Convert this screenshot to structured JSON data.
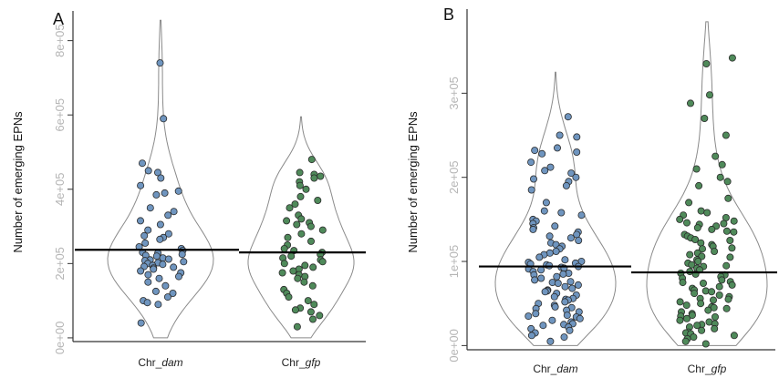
{
  "colors": {
    "blue": "#6f95bf",
    "green": "#4f8a5a",
    "violin": "#8a8a8a",
    "axis": "#333333",
    "tick_label": "#b5b5b5"
  },
  "chart_data": [
    {
      "panel": "A",
      "type": "scatter",
      "ylabel": "Number of emerging EPNs",
      "ylim": [
        -10000,
        880000
      ],
      "yticks": [
        0,
        200000,
        400000,
        600000,
        800000
      ],
      "ytick_labels": [
        "0e+00",
        "2e+05",
        "4e+05",
        "6e+05",
        "8e+05"
      ],
      "categories": [
        {
          "prefix": "Chr_",
          "italic": "dam"
        },
        {
          "prefix": "Chr_",
          "italic": "gfp"
        }
      ],
      "series": [
        {
          "color": "blue",
          "mean": 237000,
          "range": [
            0,
            855000
          ],
          "points": [
            740000,
            590000,
            470000,
            450000,
            445000,
            430000,
            410000,
            395000,
            390000,
            385000,
            350000,
            340000,
            330000,
            315000,
            305000,
            290000,
            280000,
            275000,
            270000,
            265000,
            255000,
            245000,
            240000,
            235000,
            230000,
            228000,
            225000,
            222000,
            220000,
            215000,
            212000,
            210000,
            208000,
            205000,
            202000,
            200000,
            198000,
            195000,
            192000,
            190000,
            188000,
            185000,
            180000,
            175000,
            170000,
            165000,
            160000,
            150000,
            140000,
            125000,
            120000,
            110000,
            100000,
            95000,
            90000,
            40000
          ]
        },
        {
          "color": "green",
          "mean": 230000,
          "range": [
            0,
            595000
          ],
          "points": [
            480000,
            445000,
            440000,
            435000,
            430000,
            420000,
            410000,
            400000,
            380000,
            370000,
            360000,
            350000,
            330000,
            320000,
            315000,
            310000,
            305000,
            300000,
            290000,
            280000,
            270000,
            260000,
            250000,
            240000,
            235000,
            230000,
            225000,
            220000,
            215000,
            210000,
            205000,
            200000,
            195000,
            190000,
            185000,
            180000,
            175000,
            170000,
            165000,
            160000,
            150000,
            140000,
            130000,
            120000,
            110000,
            100000,
            90000,
            80000,
            75000,
            70000,
            60000,
            50000,
            30000
          ]
        }
      ]
    },
    {
      "panel": "B",
      "type": "scatter",
      "ylabel": "Number of emerging EPNs",
      "ylim": [
        -5000,
        400000
      ],
      "yticks": [
        0,
        100000,
        200000,
        300000
      ],
      "ytick_labels": [
        "0e+00",
        "1e+05",
        "2e+05",
        "3e+05"
      ],
      "categories": [
        {
          "prefix": "Chr_",
          "italic": "dam"
        },
        {
          "prefix": "Chr_",
          "italic": "gfp"
        }
      ],
      "series": [
        {
          "color": "blue",
          "mean": 94000,
          "range": [
            0,
            325000
          ],
          "points": [
            272000,
            250000,
            248000,
            235000,
            232000,
            230000,
            228000,
            218000,
            212000,
            208000,
            205000,
            200000,
            198000,
            195000,
            190000,
            185000,
            170000,
            160000,
            158000,
            155000,
            150000,
            148000,
            145000,
            142000,
            140000,
            138000,
            135000,
            132000,
            130000,
            128000,
            125000,
            122000,
            120000,
            118000,
            115000,
            112000,
            110000,
            108000,
            105000,
            102000,
            100000,
            99000,
            98000,
            97000,
            96000,
            95000,
            94000,
            93000,
            92000,
            91000,
            90000,
            88000,
            86000,
            85000,
            84000,
            82000,
            80000,
            78000,
            76000,
            75000,
            74000,
            72000,
            70000,
            68000,
            66000,
            65000,
            64000,
            62000,
            60000,
            58000,
            56000,
            55000,
            54000,
            52000,
            50000,
            48000,
            46000,
            45000,
            44000,
            42000,
            40000,
            38000,
            36000,
            35000,
            34000,
            32000,
            30000,
            28000,
            26000,
            25000,
            24000,
            22000,
            20000,
            18000,
            15000,
            12000,
            10000,
            5000
          ]
        },
        {
          "color": "green",
          "mean": 87000,
          "range": [
            0,
            385000
          ],
          "points": [
            342000,
            335000,
            298000,
            288000,
            270000,
            250000,
            225000,
            215000,
            210000,
            200000,
            195000,
            190000,
            175000,
            170000,
            160000,
            158000,
            155000,
            152000,
            150000,
            148000,
            146000,
            145000,
            144000,
            142000,
            140000,
            138000,
            136000,
            135000,
            132000,
            130000,
            128000,
            126000,
            125000,
            122000,
            120000,
            118000,
            116000,
            115000,
            112000,
            110000,
            108000,
            106000,
            105000,
            102000,
            100000,
            98000,
            96000,
            95000,
            94000,
            92000,
            90000,
            88000,
            86000,
            85000,
            84000,
            82000,
            80000,
            78000,
            76000,
            75000,
            74000,
            72000,
            70000,
            68000,
            66000,
            65000,
            64000,
            62000,
            60000,
            58000,
            56000,
            55000,
            54000,
            52000,
            50000,
            48000,
            46000,
            45000,
            44000,
            42000,
            40000,
            38000,
            36000,
            35000,
            34000,
            32000,
            30000,
            28000,
            26000,
            25000,
            24000,
            22000,
            20000,
            18000,
            16000,
            15000,
            14000,
            12000,
            10000,
            8000,
            5000,
            2000
          ]
        }
      ]
    }
  ]
}
